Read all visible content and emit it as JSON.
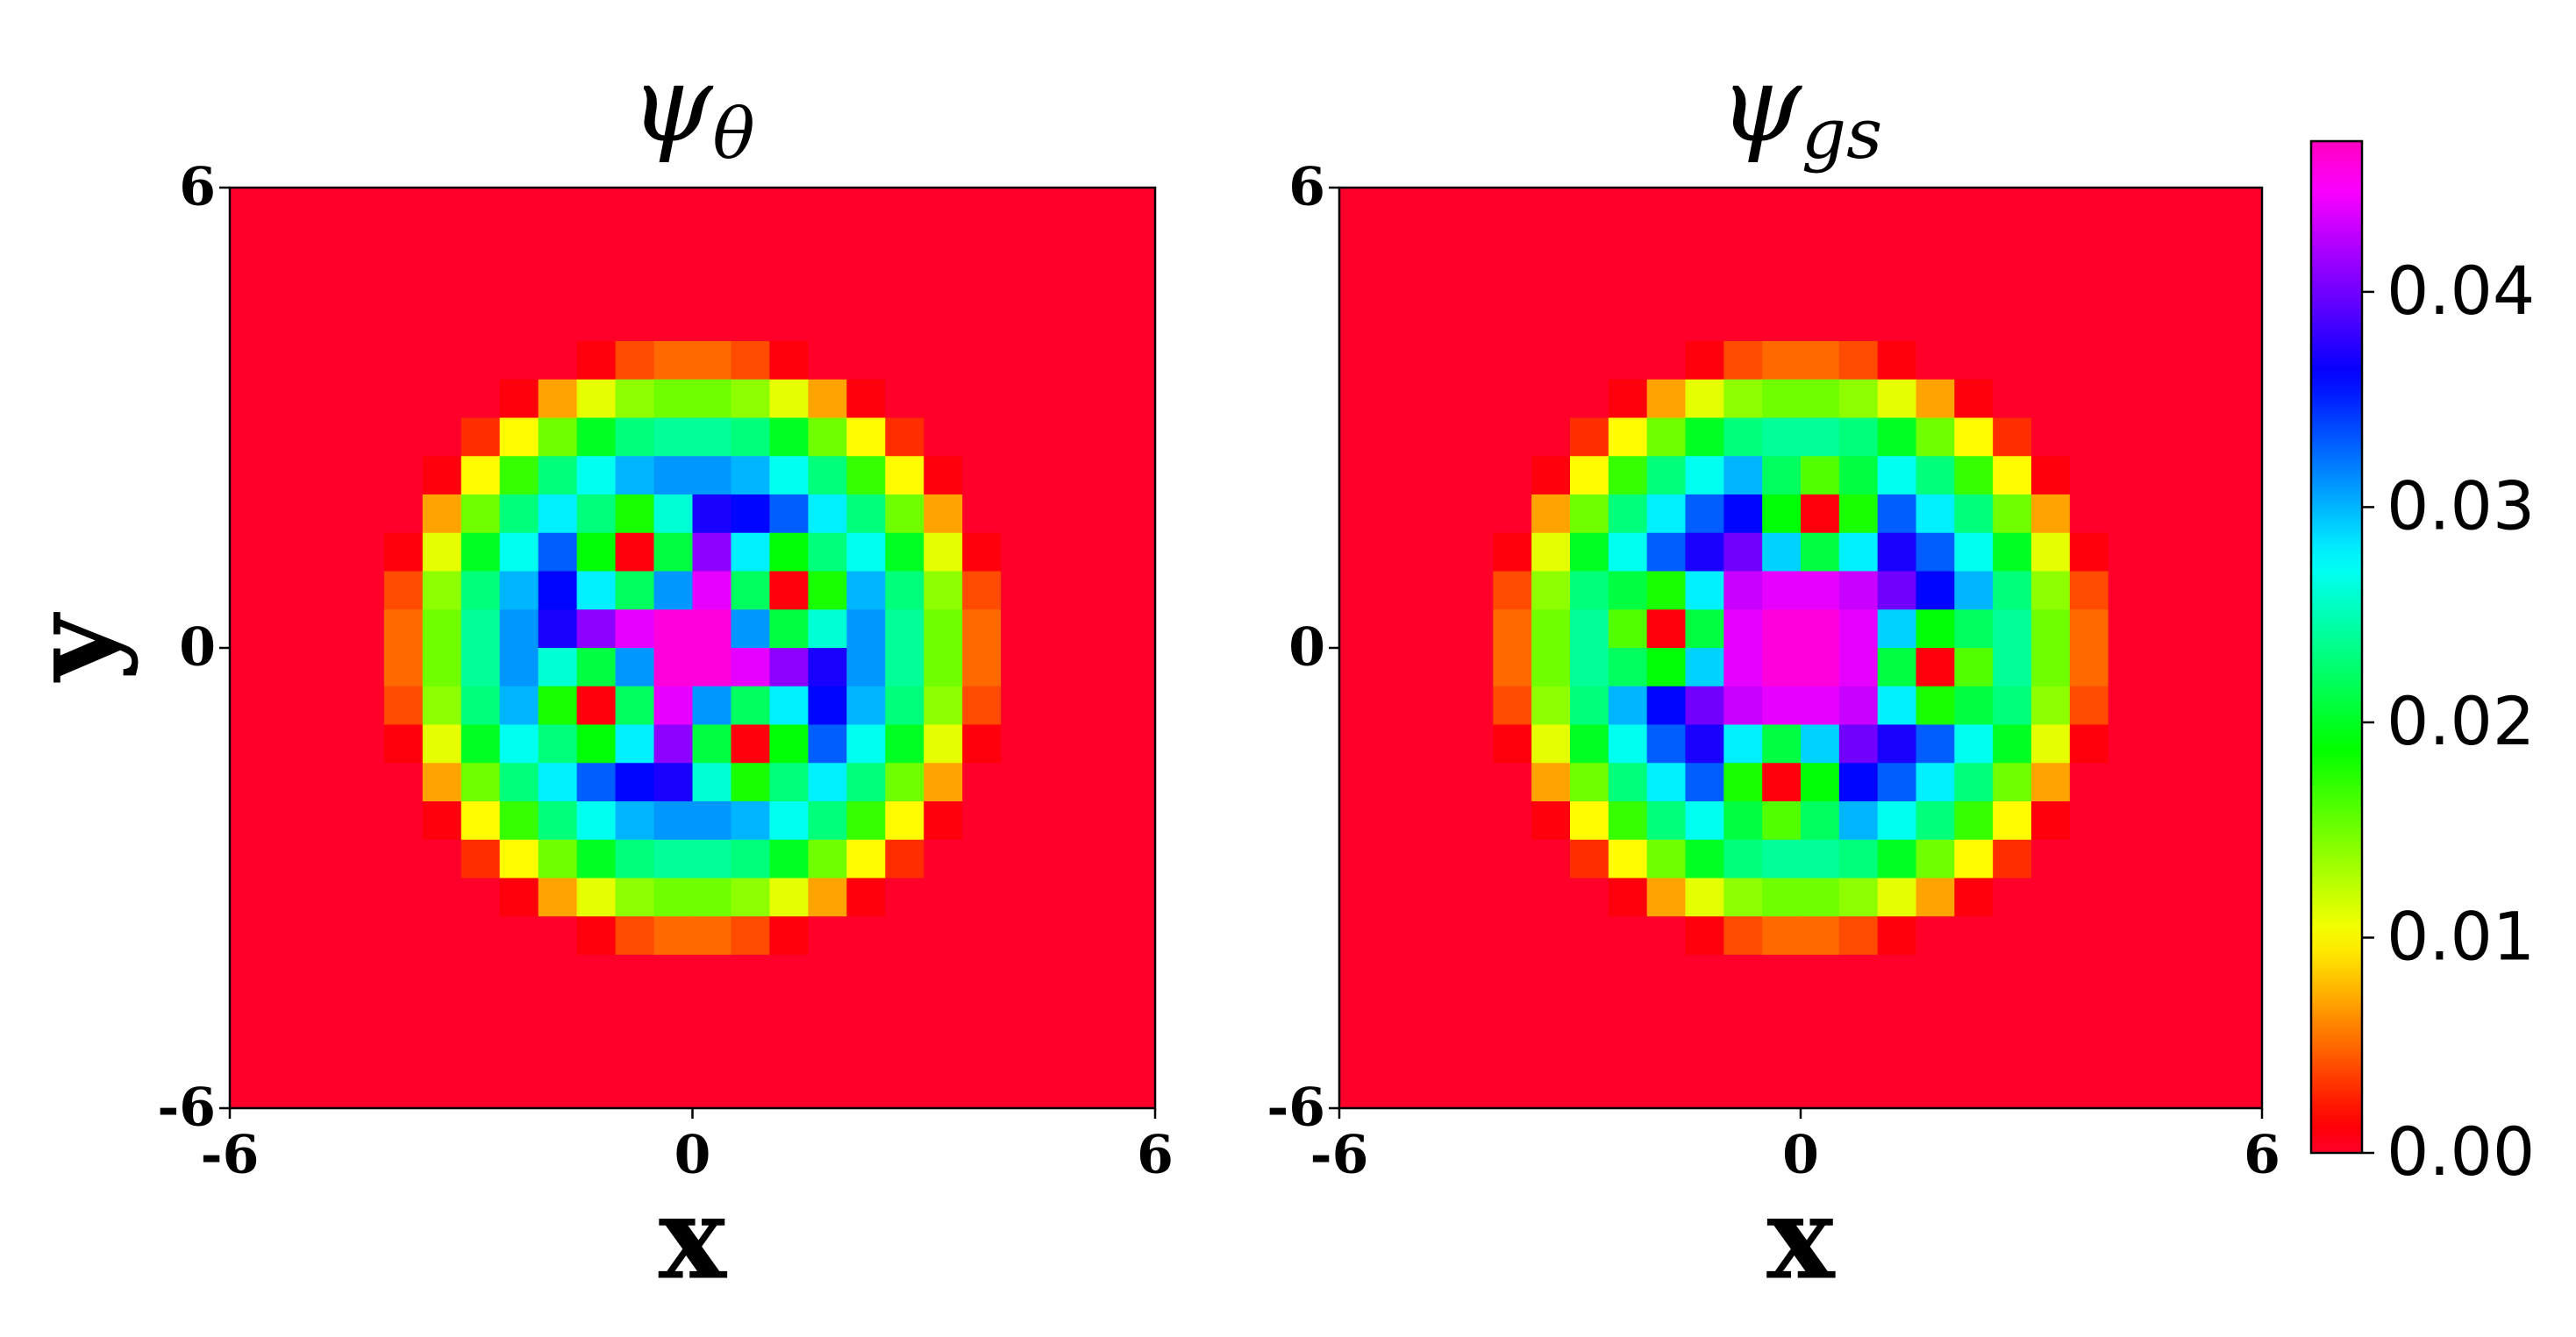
{
  "chart_data": [
    {
      "type": "heatmap",
      "title": {
        "symbol": "ψ",
        "subscript": "θ"
      },
      "xlabel": "x",
      "ylabel": "y",
      "xlim": [
        -6,
        6
      ],
      "ylim": [
        -6,
        6
      ],
      "xticks": [
        -6,
        0,
        6
      ],
      "yticks": [
        -6,
        0,
        6
      ],
      "z": [
        [
          0,
          0,
          0,
          0,
          0,
          0,
          0,
          0,
          0,
          0,
          0,
          0,
          0,
          0,
          0,
          0,
          0,
          0,
          0,
          0,
          0,
          0,
          0,
          0
        ],
        [
          0,
          0,
          0,
          0,
          0,
          0,
          0,
          0,
          0,
          0,
          0,
          0,
          0,
          0,
          0,
          0,
          0,
          0,
          0,
          0,
          0,
          0,
          0,
          0
        ],
        [
          0,
          0,
          0,
          0,
          0,
          0,
          0,
          0,
          0,
          0,
          0,
          0,
          0,
          0,
          0,
          0,
          0,
          0,
          0,
          0,
          0,
          0,
          0,
          0
        ],
        [
          0,
          0,
          0,
          0,
          0,
          0,
          0,
          0,
          0,
          0,
          0,
          0,
          0,
          0,
          0,
          0,
          0,
          0,
          0,
          0,
          0,
          0,
          0,
          0
        ],
        [
          0,
          0,
          0,
          0,
          0,
          0,
          0,
          0,
          0,
          0.001,
          0.004,
          0.005,
          0.005,
          0.004,
          0.001,
          0,
          0,
          0,
          0,
          0,
          0,
          0,
          0,
          0
        ],
        [
          0,
          0,
          0,
          0,
          0,
          0,
          0,
          0.001,
          0.007,
          0.011,
          0.014,
          0.015,
          0.015,
          0.014,
          0.011,
          0.007,
          0.001,
          0,
          0,
          0,
          0,
          0,
          0,
          0
        ],
        [
          0,
          0,
          0,
          0,
          0,
          0,
          0.003,
          0.01,
          0.015,
          0.02,
          0.023,
          0.024,
          0.024,
          0.023,
          0.02,
          0.015,
          0.01,
          0.003,
          0,
          0,
          0,
          0,
          0,
          0
        ],
        [
          0,
          0,
          0,
          0,
          0,
          0.001,
          0.01,
          0.017,
          0.023,
          0.027,
          0.03,
          0.031,
          0.031,
          0.03,
          0.027,
          0.023,
          0.017,
          0.01,
          0.001,
          0,
          0,
          0,
          0,
          0
        ],
        [
          0,
          0,
          0,
          0,
          0,
          0.007,
          0.015,
          0.023,
          0.028,
          0.023,
          0.018,
          0.026,
          0.037,
          0.036,
          0.033,
          0.028,
          0.023,
          0.015,
          0.007,
          0,
          0,
          0,
          0,
          0
        ],
        [
          0,
          0,
          0,
          0,
          0.001,
          0.011,
          0.02,
          0.027,
          0.033,
          0.019,
          0.001,
          0.021,
          0.041,
          0.028,
          0.019,
          0.023,
          0.027,
          0.02,
          0.011,
          0.001,
          0,
          0,
          0,
          0
        ],
        [
          0,
          0,
          0,
          0,
          0.004,
          0.014,
          0.023,
          0.03,
          0.036,
          0.028,
          0.022,
          0.031,
          0.044,
          0.022,
          0.001,
          0.018,
          0.03,
          0.023,
          0.014,
          0.004,
          0,
          0,
          0,
          0
        ],
        [
          0,
          0,
          0,
          0,
          0.005,
          0.015,
          0.024,
          0.031,
          0.037,
          0.041,
          0.044,
          0.046,
          0.046,
          0.031,
          0.021,
          0.026,
          0.031,
          0.024,
          0.015,
          0.005,
          0,
          0,
          0,
          0
        ],
        [
          0,
          0,
          0,
          0,
          0.005,
          0.015,
          0.024,
          0.031,
          0.026,
          0.021,
          0.031,
          0.046,
          0.046,
          0.044,
          0.041,
          0.037,
          0.031,
          0.024,
          0.015,
          0.005,
          0,
          0,
          0,
          0
        ],
        [
          0,
          0,
          0,
          0,
          0.004,
          0.014,
          0.023,
          0.03,
          0.018,
          0.001,
          0.022,
          0.044,
          0.031,
          0.022,
          0.028,
          0.036,
          0.03,
          0.023,
          0.014,
          0.004,
          0,
          0,
          0,
          0
        ],
        [
          0,
          0,
          0,
          0,
          0.001,
          0.011,
          0.02,
          0.027,
          0.023,
          0.019,
          0.028,
          0.041,
          0.021,
          0.001,
          0.019,
          0.033,
          0.027,
          0.02,
          0.011,
          0.001,
          0,
          0,
          0,
          0
        ],
        [
          0,
          0,
          0,
          0,
          0,
          0.007,
          0.015,
          0.023,
          0.028,
          0.033,
          0.036,
          0.037,
          0.026,
          0.018,
          0.023,
          0.028,
          0.023,
          0.015,
          0.007,
          0,
          0,
          0,
          0,
          0
        ],
        [
          0,
          0,
          0,
          0,
          0,
          0.001,
          0.01,
          0.017,
          0.023,
          0.027,
          0.03,
          0.031,
          0.031,
          0.03,
          0.027,
          0.023,
          0.017,
          0.01,
          0.001,
          0,
          0,
          0,
          0,
          0
        ],
        [
          0,
          0,
          0,
          0,
          0,
          0,
          0.003,
          0.01,
          0.015,
          0.02,
          0.023,
          0.024,
          0.024,
          0.023,
          0.02,
          0.015,
          0.01,
          0.003,
          0,
          0,
          0,
          0,
          0,
          0
        ],
        [
          0,
          0,
          0,
          0,
          0,
          0,
          0,
          0.001,
          0.007,
          0.011,
          0.014,
          0.015,
          0.015,
          0.014,
          0.011,
          0.007,
          0.001,
          0,
          0,
          0,
          0,
          0,
          0,
          0
        ],
        [
          0,
          0,
          0,
          0,
          0,
          0,
          0,
          0,
          0,
          0.001,
          0.004,
          0.005,
          0.005,
          0.004,
          0.001,
          0,
          0,
          0,
          0,
          0,
          0,
          0,
          0,
          0
        ],
        [
          0,
          0,
          0,
          0,
          0,
          0,
          0,
          0,
          0,
          0,
          0,
          0,
          0,
          0,
          0,
          0,
          0,
          0,
          0,
          0,
          0,
          0,
          0,
          0
        ],
        [
          0,
          0,
          0,
          0,
          0,
          0,
          0,
          0,
          0,
          0,
          0,
          0,
          0,
          0,
          0,
          0,
          0,
          0,
          0,
          0,
          0,
          0,
          0,
          0
        ],
        [
          0,
          0,
          0,
          0,
          0,
          0,
          0,
          0,
          0,
          0,
          0,
          0,
          0,
          0,
          0,
          0,
          0,
          0,
          0,
          0,
          0,
          0,
          0,
          0
        ],
        [
          0,
          0,
          0,
          0,
          0,
          0,
          0,
          0,
          0,
          0,
          0,
          0,
          0,
          0,
          0,
          0,
          0,
          0,
          0,
          0,
          0,
          0,
          0,
          0
        ]
      ]
    },
    {
      "type": "heatmap",
      "title": {
        "symbol": "ψ",
        "subscript": "gs"
      },
      "xlabel": "x",
      "xlim": [
        -6,
        6
      ],
      "ylim": [
        -6,
        6
      ],
      "xticks": [
        -6,
        0,
        6
      ],
      "yticks": [
        -6,
        0,
        6
      ],
      "z": [
        [
          0,
          0,
          0,
          0,
          0,
          0,
          0,
          0,
          0,
          0,
          0,
          0,
          0,
          0,
          0,
          0,
          0,
          0,
          0,
          0,
          0,
          0,
          0,
          0
        ],
        [
          0,
          0,
          0,
          0,
          0,
          0,
          0,
          0,
          0,
          0,
          0,
          0,
          0,
          0,
          0,
          0,
          0,
          0,
          0,
          0,
          0,
          0,
          0,
          0
        ],
        [
          0,
          0,
          0,
          0,
          0,
          0,
          0,
          0,
          0,
          0,
          0,
          0,
          0,
          0,
          0,
          0,
          0,
          0,
          0,
          0,
          0,
          0,
          0,
          0
        ],
        [
          0,
          0,
          0,
          0,
          0,
          0,
          0,
          0,
          0,
          0,
          0,
          0,
          0,
          0,
          0,
          0,
          0,
          0,
          0,
          0,
          0,
          0,
          0,
          0
        ],
        [
          0,
          0,
          0,
          0,
          0,
          0,
          0,
          0,
          0,
          0.001,
          0.004,
          0.005,
          0.005,
          0.004,
          0.001,
          0,
          0,
          0,
          0,
          0,
          0,
          0,
          0,
          0
        ],
        [
          0,
          0,
          0,
          0,
          0,
          0,
          0,
          0.001,
          0.007,
          0.011,
          0.014,
          0.015,
          0.015,
          0.014,
          0.011,
          0.007,
          0.001,
          0,
          0,
          0,
          0,
          0,
          0,
          0
        ],
        [
          0,
          0,
          0,
          0,
          0,
          0,
          0.003,
          0.01,
          0.015,
          0.02,
          0.023,
          0.024,
          0.024,
          0.023,
          0.02,
          0.015,
          0.01,
          0.003,
          0,
          0,
          0,
          0,
          0,
          0
        ],
        [
          0,
          0,
          0,
          0,
          0,
          0.001,
          0.01,
          0.017,
          0.023,
          0.027,
          0.03,
          0.022,
          0.016,
          0.021,
          0.027,
          0.023,
          0.017,
          0.01,
          0.001,
          0,
          0,
          0,
          0,
          0
        ],
        [
          0,
          0,
          0,
          0,
          0,
          0.007,
          0.015,
          0.023,
          0.028,
          0.033,
          0.036,
          0.019,
          0.001,
          0.018,
          0.033,
          0.028,
          0.023,
          0.015,
          0.007,
          0,
          0,
          0,
          0,
          0
        ],
        [
          0,
          0,
          0,
          0,
          0.001,
          0.011,
          0.02,
          0.027,
          0.033,
          0.037,
          0.04,
          0.029,
          0.021,
          0.028,
          0.037,
          0.033,
          0.027,
          0.02,
          0.011,
          0.001,
          0,
          0,
          0,
          0
        ],
        [
          0,
          0,
          0,
          0,
          0.004,
          0.014,
          0.023,
          0.021,
          0.018,
          0.028,
          0.043,
          0.044,
          0.044,
          0.043,
          0.04,
          0.036,
          0.03,
          0.023,
          0.014,
          0.004,
          0,
          0,
          0,
          0
        ],
        [
          0,
          0,
          0,
          0,
          0.005,
          0.015,
          0.024,
          0.016,
          0.001,
          0.021,
          0.044,
          0.046,
          0.046,
          0.044,
          0.029,
          0.019,
          0.022,
          0.024,
          0.015,
          0.005,
          0,
          0,
          0,
          0
        ],
        [
          0,
          0,
          0,
          0,
          0.005,
          0.015,
          0.024,
          0.022,
          0.019,
          0.029,
          0.044,
          0.046,
          0.046,
          0.044,
          0.021,
          0.001,
          0.016,
          0.024,
          0.015,
          0.005,
          0,
          0,
          0,
          0
        ],
        [
          0,
          0,
          0,
          0,
          0.004,
          0.014,
          0.023,
          0.03,
          0.036,
          0.04,
          0.043,
          0.044,
          0.044,
          0.043,
          0.028,
          0.018,
          0.021,
          0.023,
          0.014,
          0.004,
          0,
          0,
          0,
          0
        ],
        [
          0,
          0,
          0,
          0,
          0.001,
          0.011,
          0.02,
          0.027,
          0.033,
          0.037,
          0.028,
          0.021,
          0.029,
          0.04,
          0.037,
          0.033,
          0.027,
          0.02,
          0.011,
          0.001,
          0,
          0,
          0,
          0
        ],
        [
          0,
          0,
          0,
          0,
          0,
          0.007,
          0.015,
          0.023,
          0.028,
          0.033,
          0.018,
          0.001,
          0.019,
          0.036,
          0.033,
          0.028,
          0.023,
          0.015,
          0.007,
          0,
          0,
          0,
          0,
          0
        ],
        [
          0,
          0,
          0,
          0,
          0,
          0.001,
          0.01,
          0.017,
          0.023,
          0.027,
          0.021,
          0.016,
          0.022,
          0.03,
          0.027,
          0.023,
          0.017,
          0.01,
          0.001,
          0,
          0,
          0,
          0,
          0
        ],
        [
          0,
          0,
          0,
          0,
          0,
          0,
          0.003,
          0.01,
          0.015,
          0.02,
          0.023,
          0.024,
          0.024,
          0.023,
          0.02,
          0.015,
          0.01,
          0.003,
          0,
          0,
          0,
          0,
          0,
          0
        ],
        [
          0,
          0,
          0,
          0,
          0,
          0,
          0,
          0.001,
          0.007,
          0.011,
          0.014,
          0.015,
          0.015,
          0.014,
          0.011,
          0.007,
          0.001,
          0,
          0,
          0,
          0,
          0,
          0,
          0
        ],
        [
          0,
          0,
          0,
          0,
          0,
          0,
          0,
          0,
          0,
          0.001,
          0.004,
          0.005,
          0.005,
          0.004,
          0.001,
          0,
          0,
          0,
          0,
          0,
          0,
          0,
          0,
          0
        ],
        [
          0,
          0,
          0,
          0,
          0,
          0,
          0,
          0,
          0,
          0,
          0,
          0,
          0,
          0,
          0,
          0,
          0,
          0,
          0,
          0,
          0,
          0,
          0,
          0
        ],
        [
          0,
          0,
          0,
          0,
          0,
          0,
          0,
          0,
          0,
          0,
          0,
          0,
          0,
          0,
          0,
          0,
          0,
          0,
          0,
          0,
          0,
          0,
          0,
          0
        ],
        [
          0,
          0,
          0,
          0,
          0,
          0,
          0,
          0,
          0,
          0,
          0,
          0,
          0,
          0,
          0,
          0,
          0,
          0,
          0,
          0,
          0,
          0,
          0,
          0
        ],
        [
          0,
          0,
          0,
          0,
          0,
          0,
          0,
          0,
          0,
          0,
          0,
          0,
          0,
          0,
          0,
          0,
          0,
          0,
          0,
          0,
          0,
          0,
          0,
          0
        ]
      ]
    }
  ],
  "colorbar": {
    "colormap": "gist_rainbow",
    "lim": [
      0,
      0.047
    ],
    "ticks": [
      {
        "value": 0,
        "label": "0.00"
      },
      {
        "value": 0.01,
        "label": "0.01"
      },
      {
        "value": 0.02,
        "label": "0.02"
      },
      {
        "value": 0.03,
        "label": "0.03"
      },
      {
        "value": 0.04,
        "label": "0.04"
      }
    ]
  }
}
